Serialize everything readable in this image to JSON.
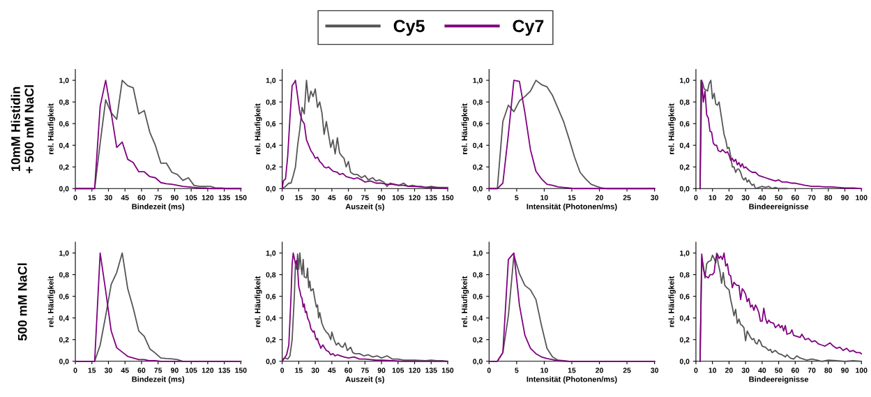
{
  "chart_data": [
    {
      "type": "line",
      "xlabel": "Bindezeit (ms)",
      "ylabel": "rel. Häufigkeit",
      "legend": "top",
      "annotations": [
        "10mM Histidin\n+ 500 mM NaCl"
      ],
      "xlim": [
        0,
        150
      ],
      "xticks": [
        0,
        15,
        30,
        45,
        60,
        75,
        90,
        105,
        120,
        135,
        150
      ],
      "ylim": [
        0,
        1.1
      ],
      "yticks": [
        {
          "value": 0,
          "label": "0,0"
        },
        {
          "value": 0.2,
          "label": "0,2"
        },
        {
          "value": 0.4,
          "label": "0,4"
        },
        {
          "value": 0.6,
          "label": "0,6"
        },
        {
          "value": 0.8,
          "label": "0,8"
        },
        {
          "value": 1.0,
          "label": "1,0"
        }
      ],
      "series": [
        {
          "name": "Cy5",
          "color": "#555555",
          "x": [
            0,
            17.5,
            22.5,
            27.5,
            32.5,
            37.5,
            42.5,
            47.5,
            52.5,
            57.5,
            62.5,
            67.5,
            72.5,
            77.5,
            82.5,
            87.5,
            92.5,
            97.5,
            102.5,
            107.5,
            112.5,
            117.5,
            122.5,
            127.5,
            132.5,
            137.5,
            150
          ],
          "values": [
            0,
            0,
            0.42,
            0.82,
            0.7,
            0.64,
            1.0,
            0.95,
            0.93,
            0.69,
            0.72,
            0.52,
            0.4,
            0.235,
            0.235,
            0.15,
            0.13,
            0.075,
            0.1,
            0.03,
            0.02,
            0.02,
            0.02,
            0.005,
            0.005,
            0,
            0
          ]
        },
        {
          "name": "Cy7",
          "color": "#800080",
          "x": [
            0,
            17.5,
            22.5,
            27.5,
            32.5,
            37.5,
            42.5,
            47.5,
            52.5,
            57.5,
            62.5,
            67.5,
            72.5,
            77.5,
            82.5,
            87.5,
            92.5,
            97.5,
            102.5,
            107.5,
            112.5,
            117.5,
            122.5,
            150
          ],
          "values": [
            0,
            0,
            0.76,
            1.0,
            0.7,
            0.38,
            0.43,
            0.27,
            0.24,
            0.155,
            0.155,
            0.11,
            0.1,
            0.055,
            0.045,
            0.04,
            0.03,
            0.02,
            0.015,
            0.01,
            0.005,
            0.005,
            0,
            0
          ]
        }
      ]
    },
    {
      "type": "line",
      "xlabel": "Auszeit (s)",
      "ylabel": "rel. Häufigkeit",
      "xlim": [
        0,
        150
      ],
      "xticks": [
        0,
        15,
        30,
        45,
        60,
        75,
        90,
        105,
        120,
        135,
        150
      ],
      "ylim": [
        0,
        1.1
      ],
      "yticks": [
        {
          "value": 0,
          "label": "0,0"
        },
        {
          "value": 0.2,
          "label": "0,2"
        },
        {
          "value": 0.4,
          "label": "0,4"
        },
        {
          "value": 0.6,
          "label": "0,6"
        },
        {
          "value": 0.8,
          "label": "0,8"
        },
        {
          "value": 1.0,
          "label": "1,0"
        }
      ],
      "series": [
        {
          "color": "#555555",
          "x": [
            0,
            3,
            6,
            8,
            10,
            12,
            14,
            16,
            18,
            20,
            22,
            24,
            26,
            28,
            30,
            32,
            34,
            36,
            38,
            40,
            42,
            44,
            46,
            48,
            50,
            52,
            54,
            56,
            58,
            60,
            62,
            65,
            68,
            72,
            75,
            78,
            82,
            85,
            88,
            92,
            95,
            98,
            102,
            106,
            110,
            114,
            118,
            122,
            126,
            130,
            135,
            140,
            145,
            150
          ],
          "values": [
            0,
            0.02,
            0.05,
            0.05,
            0.12,
            0.2,
            0.4,
            0.55,
            0.75,
            0.69,
            1.0,
            0.8,
            0.9,
            0.85,
            0.92,
            0.75,
            0.8,
            0.7,
            0.5,
            0.62,
            0.5,
            0.38,
            0.45,
            0.32,
            0.47,
            0.33,
            0.3,
            0.28,
            0.2,
            0.25,
            0.15,
            0.13,
            0.13,
            0.1,
            0.12,
            0.08,
            0.1,
            0.07,
            0.08,
            0.06,
            0.02,
            0.05,
            0.04,
            0.03,
            0.05,
            0.02,
            0.03,
            0.02,
            0.02,
            0.01,
            0.02,
            0.01,
            0.01,
            0.01
          ]
        },
        {
          "color": "#800080",
          "x": [
            0,
            1,
            3,
            5,
            7,
            9,
            11,
            12,
            14,
            16,
            18,
            20,
            22,
            24,
            26,
            28,
            30,
            32,
            34,
            36,
            38,
            40,
            42,
            44,
            46,
            50,
            52,
            55,
            58,
            62,
            65,
            68,
            72,
            75,
            80,
            85,
            90,
            95,
            100,
            105,
            110,
            115,
            120,
            130,
            140,
            150
          ],
          "values": [
            0,
            0.07,
            0.09,
            0.3,
            0.65,
            0.95,
            0.98,
            1.0,
            0.85,
            0.7,
            0.63,
            0.6,
            0.45,
            0.4,
            0.35,
            0.32,
            0.28,
            0.29,
            0.25,
            0.23,
            0.2,
            0.19,
            0.2,
            0.18,
            0.16,
            0.15,
            0.13,
            0.14,
            0.11,
            0.1,
            0.09,
            0.1,
            0.08,
            0.06,
            0.07,
            0.05,
            0.05,
            0.04,
            0.04,
            0.03,
            0.03,
            0.02,
            0.02,
            0.01,
            0.01,
            0
          ]
        }
      ]
    },
    {
      "type": "line",
      "xlabel": "Intensität (Photonen/ms)",
      "ylabel": "rel. Häufigkeit",
      "xlim": [
        0,
        30
      ],
      "xticks": [
        0,
        5,
        10,
        15,
        20,
        25,
        30
      ],
      "ylim": [
        0,
        1.1
      ],
      "yticks": [
        {
          "value": 0,
          "label": "0,0"
        },
        {
          "value": 0.2,
          "label": "0,2"
        },
        {
          "value": 0.4,
          "label": "0,4"
        },
        {
          "value": 0.6,
          "label": "0,6"
        },
        {
          "value": 0.8,
          "label": "0,8"
        },
        {
          "value": 1.0,
          "label": "1,0"
        }
      ],
      "series": [
        {
          "color": "#555555",
          "x": [
            0,
            1.5,
            2.5,
            3.5,
            4.5,
            5.5,
            6.5,
            7.5,
            8.5,
            9.5,
            10.5,
            11.5,
            12.5,
            13.5,
            14.5,
            15.5,
            16.5,
            17.5,
            18.5,
            19.5,
            20.5,
            21.5,
            30
          ],
          "values": [
            0,
            0,
            0.62,
            0.77,
            0.71,
            0.81,
            0.85,
            0.9,
            1.0,
            0.96,
            0.94,
            0.86,
            0.74,
            0.62,
            0.46,
            0.29,
            0.15,
            0.09,
            0.04,
            0.02,
            0.005,
            0,
            0
          ]
        },
        {
          "color": "#800080",
          "x": [
            0,
            1.5,
            2.5,
            3.5,
            4.5,
            5.5,
            6.5,
            7.5,
            8.5,
            9.5,
            10.5,
            11.5,
            12.5,
            13.5,
            14.5,
            15.5,
            30
          ],
          "values": [
            0,
            0,
            0.05,
            0.5,
            1.0,
            0.99,
            0.7,
            0.36,
            0.16,
            0.09,
            0.04,
            0.03,
            0.015,
            0.01,
            0.005,
            0,
            0
          ]
        }
      ]
    },
    {
      "type": "line",
      "xlabel": "Bindeereignisse",
      "ylabel": "rel. Häufigkeit",
      "xlim": [
        0,
        100
      ],
      "xticks": [
        0,
        10,
        20,
        30,
        40,
        50,
        60,
        70,
        80,
        90,
        100
      ],
      "ylim": [
        0,
        1.1
      ],
      "yticks": [
        {
          "value": 0,
          "label": "0,0"
        },
        {
          "value": 0.2,
          "label": "0,2"
        },
        {
          "value": 0.4,
          "label": "0,4"
        },
        {
          "value": 0.6,
          "label": "0,6"
        },
        {
          "value": 0.8,
          "label": "0,8"
        },
        {
          "value": 1.0,
          "label": "1,0"
        }
      ],
      "series": [
        {
          "color": "#555555",
          "x": [
            2.5,
            3,
            4,
            5,
            7,
            8,
            9,
            10,
            11,
            12,
            13,
            14,
            15,
            16,
            17,
            18,
            19,
            20,
            21,
            22,
            23,
            24,
            25,
            26,
            27,
            28,
            29,
            30,
            31,
            32,
            33,
            34,
            35,
            36,
            38,
            40,
            42,
            44,
            46,
            48,
            50,
            55
          ],
          "values": [
            0,
            1.0,
            0.98,
            0.92,
            0.9,
            0.97,
            1.0,
            0.83,
            0.88,
            0.78,
            0.77,
            0.8,
            0.7,
            0.6,
            0.5,
            0.45,
            0.37,
            0.38,
            0.3,
            0.2,
            0.2,
            0.15,
            0.18,
            0.18,
            0.15,
            0.1,
            0.08,
            0.1,
            0.06,
            0.08,
            0.05,
            0.03,
            0.04,
            0,
            0.01,
            0.02,
            0.01,
            0.02,
            0,
            0.01,
            0,
            0
          ]
        },
        {
          "color": "#800080",
          "x": [
            2.5,
            3.5,
            4.5,
            5.5,
            6.5,
            7.5,
            8.5,
            9.5,
            10.5,
            11.5,
            12.5,
            13.5,
            15,
            16,
            18,
            19,
            20,
            21,
            22,
            23,
            24,
            25,
            26,
            27,
            28,
            29,
            30,
            32,
            34,
            36,
            38,
            40,
            42,
            44,
            46,
            48,
            50,
            52,
            55,
            58,
            60,
            63,
            66,
            70,
            74,
            78,
            82,
            86,
            90,
            95,
            100
          ],
          "values": [
            0,
            1.0,
            0.8,
            0.9,
            0.68,
            0.65,
            0.53,
            0.52,
            0.42,
            0.4,
            0.4,
            0.35,
            0.34,
            0.36,
            0.33,
            0.34,
            0.31,
            0.26,
            0.28,
            0.25,
            0.27,
            0.22,
            0.24,
            0.2,
            0.23,
            0.19,
            0.2,
            0.17,
            0.15,
            0.15,
            0.12,
            0.11,
            0.1,
            0.09,
            0.08,
            0.07,
            0.08,
            0.06,
            0.06,
            0.05,
            0.05,
            0.04,
            0.03,
            0.02,
            0.02,
            0.015,
            0.015,
            0.01,
            0.005,
            0.005,
            0
          ]
        }
      ]
    },
    {
      "type": "line",
      "xlabel": "Bindezeit (ms)",
      "ylabel": "rel. Häufigkeit",
      "annotations": [
        "500 mM NaCl"
      ],
      "xlim": [
        0,
        150
      ],
      "xticks": [
        0,
        15,
        30,
        45,
        60,
        75,
        90,
        105,
        120,
        135,
        150
      ],
      "ylim": [
        0,
        1.1
      ],
      "yticks": [
        {
          "value": 0,
          "label": "0,0"
        },
        {
          "value": 0.2,
          "label": "0,2"
        },
        {
          "value": 0.4,
          "label": "0,4"
        },
        {
          "value": 0.6,
          "label": "0,6"
        },
        {
          "value": 0.8,
          "label": "0,8"
        },
        {
          "value": 1.0,
          "label": "1,0"
        }
      ],
      "series": [
        {
          "color": "#555555",
          "x": [
            0,
            17.5,
            22.5,
            27.5,
            32.5,
            37.5,
            42.5,
            47.5,
            52.5,
            57.5,
            62.5,
            67.5,
            72.5,
            77.5,
            82.5,
            87.5,
            92.5,
            97.5,
            150
          ],
          "values": [
            0,
            0,
            0.15,
            0.42,
            0.71,
            0.82,
            1.0,
            0.67,
            0.49,
            0.28,
            0.23,
            0.115,
            0.075,
            0.03,
            0.025,
            0.022,
            0.015,
            0,
            0
          ]
        },
        {
          "color": "#800080",
          "x": [
            0,
            17.5,
            22.5,
            27.5,
            32.5,
            37.5,
            42.5,
            47.5,
            52.5,
            57.5,
            62.5,
            67.5,
            72.5,
            77.5,
            150
          ],
          "values": [
            0,
            0,
            1.0,
            0.65,
            0.28,
            0.125,
            0.085,
            0.045,
            0.03,
            0.015,
            0.015,
            0.005,
            0.005,
            0,
            0
          ]
        }
      ]
    },
    {
      "type": "line",
      "xlabel": "Auszeit (s)",
      "ylabel": "rel. Häufigkeit",
      "xlim": [
        0,
        150
      ],
      "xticks": [
        0,
        15,
        30,
        45,
        60,
        75,
        90,
        105,
        120,
        135,
        150
      ],
      "ylim": [
        0,
        1.1
      ],
      "yticks": [
        {
          "value": 0,
          "label": "0,0"
        },
        {
          "value": 0.2,
          "label": "0,2"
        },
        {
          "value": 0.4,
          "label": "0,4"
        },
        {
          "value": 0.6,
          "label": "0,6"
        },
        {
          "value": 0.8,
          "label": "0,8"
        },
        {
          "value": 1.0,
          "label": "1,0"
        }
      ],
      "series": [
        {
          "color": "#555555",
          "x": [
            0,
            3,
            5,
            7,
            9,
            11,
            12,
            13,
            14,
            15,
            16,
            17,
            18,
            19,
            20,
            22,
            23,
            24,
            25,
            26,
            28,
            30,
            31,
            32,
            33,
            34,
            36,
            38,
            40,
            42,
            44,
            45,
            47,
            49,
            51,
            53,
            55,
            57,
            59,
            62,
            64,
            66,
            70,
            74,
            78,
            82,
            86,
            90,
            95,
            100,
            105,
            110,
            120,
            130,
            135,
            140,
            145,
            150
          ],
          "values": [
            0.02,
            0.03,
            0.02,
            0.05,
            0.2,
            0.6,
            0.9,
            0.85,
            0.99,
            0.85,
            1.0,
            0.88,
            0.8,
            0.94,
            0.78,
            0.77,
            0.86,
            0.68,
            0.74,
            0.65,
            0.67,
            0.55,
            0.5,
            0.52,
            0.4,
            0.45,
            0.35,
            0.3,
            0.27,
            0.25,
            0.2,
            0.27,
            0.2,
            0.15,
            0.17,
            0.14,
            0.13,
            0.17,
            0.1,
            0.13,
            0.08,
            0.07,
            0.07,
            0.05,
            0.06,
            0.04,
            0.05,
            0.03,
            0.05,
            0.02,
            0.02,
            0.01,
            0.01,
            0.005,
            0.01,
            0.005,
            0.005,
            0
          ]
        },
        {
          "color": "#800080",
          "x": [
            0,
            2,
            4,
            6,
            8,
            9,
            10,
            11,
            12,
            13,
            14,
            15,
            16,
            17,
            18,
            19,
            20,
            21,
            22,
            23,
            24,
            25,
            26,
            28,
            29,
            30,
            31,
            32,
            33,
            34,
            35,
            36,
            37,
            38,
            40,
            42,
            44,
            46,
            48,
            50,
            53,
            56,
            60,
            65,
            70,
            75,
            80,
            85,
            90,
            100,
            110,
            150
          ],
          "values": [
            0,
            0.03,
            0.06,
            0.15,
            0.6,
            0.9,
            1.0,
            0.95,
            0.9,
            0.93,
            0.85,
            0.69,
            0.65,
            0.6,
            0.58,
            0.5,
            0.53,
            0.45,
            0.46,
            0.4,
            0.38,
            0.35,
            0.3,
            0.27,
            0.28,
            0.23,
            0.2,
            0.21,
            0.17,
            0.15,
            0.12,
            0.14,
            0.15,
            0.13,
            0.1,
            0.09,
            0.06,
            0.07,
            0.05,
            0.06,
            0.05,
            0.04,
            0.03,
            0.04,
            0.02,
            0.02,
            0.015,
            0.01,
            0.01,
            0.005,
            0,
            0
          ]
        }
      ]
    },
    {
      "type": "line",
      "xlabel": "Intensität (Photonen/ms)",
      "ylabel": "rel. Häufigkeit",
      "xlim": [
        0,
        30
      ],
      "xticks": [
        0,
        5,
        10,
        15,
        20,
        25,
        30
      ],
      "ylim": [
        0,
        1.1
      ],
      "yticks": [
        {
          "value": 0,
          "label": "0,0"
        },
        {
          "value": 0.2,
          "label": "0,2"
        },
        {
          "value": 0.4,
          "label": "0,4"
        },
        {
          "value": 0.6,
          "label": "0,6"
        },
        {
          "value": 0.8,
          "label": "0,8"
        },
        {
          "value": 1.0,
          "label": "1,0"
        }
      ],
      "series": [
        {
          "color": "#555555",
          "x": [
            0,
            1.5,
            2.5,
            3.5,
            4.5,
            5.5,
            6.5,
            7.5,
            8.5,
            9.5,
            10.5,
            11.5,
            12.5,
            13.5,
            14.5,
            30
          ],
          "values": [
            0,
            0,
            0.08,
            0.42,
            0.98,
            0.81,
            0.7,
            0.66,
            0.57,
            0.33,
            0.12,
            0.04,
            0.01,
            0.005,
            0,
            0
          ]
        },
        {
          "color": "#800080",
          "x": [
            0,
            1.5,
            2.5,
            3.5,
            4.5,
            5.5,
            6.5,
            7.5,
            8.5,
            9.5,
            10.5,
            11.5,
            12.5,
            13.5,
            14.5,
            30
          ],
          "values": [
            0,
            0,
            0.08,
            0.94,
            1.0,
            0.52,
            0.24,
            0.12,
            0.07,
            0.04,
            0.025,
            0.015,
            0.005,
            0.002,
            0,
            0
          ]
        }
      ]
    },
    {
      "type": "line",
      "xlabel": "Bindeereignisse",
      "ylabel": "rel. Häufigkeit",
      "xlim": [
        0,
        100
      ],
      "xticks": [
        0,
        10,
        20,
        30,
        40,
        50,
        60,
        70,
        80,
        90,
        100
      ],
      "ylim": [
        0,
        1.1
      ],
      "yticks": [
        {
          "value": 0,
          "label": "0,0"
        },
        {
          "value": 0.2,
          "label": "0,2"
        },
        {
          "value": 0.4,
          "label": "0,4"
        },
        {
          "value": 0.6,
          "label": "0,6"
        },
        {
          "value": 0.8,
          "label": "0,8"
        },
        {
          "value": 1.0,
          "label": "1,0"
        }
      ],
      "series": [
        {
          "color": "#555555",
          "x": [
            2.5,
            3.5,
            4.5,
            5.5,
            6.5,
            7.5,
            9,
            10,
            11,
            12,
            12.5,
            13.5,
            14.5,
            15.5,
            16.5,
            17.5,
            18.5,
            20,
            21,
            22,
            23,
            24,
            25,
            26,
            27,
            28,
            29,
            30,
            31,
            32,
            33,
            34,
            35,
            36,
            37,
            38,
            39,
            40,
            42,
            44,
            45,
            46,
            48,
            50,
            52,
            54,
            55,
            57,
            59,
            61,
            63,
            65,
            67,
            70,
            73,
            76,
            80,
            85,
            90,
            95,
            100
          ],
          "values": [
            0,
            0.95,
            0.88,
            0.77,
            0.9,
            0.92,
            0.93,
            0.98,
            0.95,
            0.91,
            1.0,
            0.9,
            0.83,
            0.72,
            0.82,
            0.7,
            0.68,
            0.66,
            0.57,
            0.5,
            0.42,
            0.48,
            0.35,
            0.39,
            0.34,
            0.33,
            0.31,
            0.19,
            0.28,
            0.25,
            0.22,
            0.2,
            0.21,
            0.17,
            0.16,
            0.2,
            0.18,
            0.14,
            0.13,
            0.1,
            0.11,
            0.08,
            0.1,
            0.07,
            0.06,
            0.04,
            0.06,
            0.03,
            0.02,
            0.05,
            0.03,
            0.02,
            0.01,
            0.02,
            0.01,
            0,
            0.01,
            0.005,
            0,
            0.005,
            0
          ]
        },
        {
          "color": "#800080",
          "x": [
            2.5,
            3.5,
            4.5,
            5.5,
            6.5,
            7.5,
            8.5,
            10,
            11,
            12,
            13,
            14,
            15,
            16,
            17,
            18,
            19,
            20,
            21,
            22,
            23,
            24,
            25,
            26,
            27,
            28,
            29,
            30,
            31,
            32,
            33,
            34,
            35,
            36,
            37,
            38,
            39,
            40,
            41,
            42,
            43,
            44,
            45,
            47,
            48,
            50,
            51,
            52,
            53,
            54,
            55,
            57,
            58,
            59,
            61,
            63,
            64,
            66,
            68,
            70,
            72,
            74,
            76,
            78,
            80,
            81,
            83,
            85,
            87,
            89,
            91,
            93,
            95,
            97,
            99,
            100
          ],
          "values": [
            0,
            0.99,
            0.85,
            0.79,
            0.78,
            0.77,
            0.8,
            0.8,
            0.82,
            0.95,
            0.99,
            0.95,
            0.97,
            0.94,
            1.0,
            0.88,
            0.9,
            0.8,
            0.79,
            0.68,
            0.73,
            0.71,
            0.7,
            0.7,
            0.57,
            0.67,
            0.65,
            0.62,
            0.55,
            0.58,
            0.5,
            0.52,
            0.47,
            0.52,
            0.49,
            0.45,
            0.37,
            0.37,
            0.49,
            0.4,
            0.35,
            0.38,
            0.36,
            0.35,
            0.31,
            0.34,
            0.31,
            0.33,
            0.28,
            0.33,
            0.25,
            0.26,
            0.29,
            0.24,
            0.23,
            0.22,
            0.25,
            0.2,
            0.21,
            0.18,
            0.19,
            0.16,
            0.15,
            0.14,
            0.16,
            0.17,
            0.14,
            0.12,
            0.13,
            0.1,
            0.12,
            0.09,
            0.1,
            0.08,
            0.08,
            0.07
          ]
        }
      ]
    }
  ]
}
